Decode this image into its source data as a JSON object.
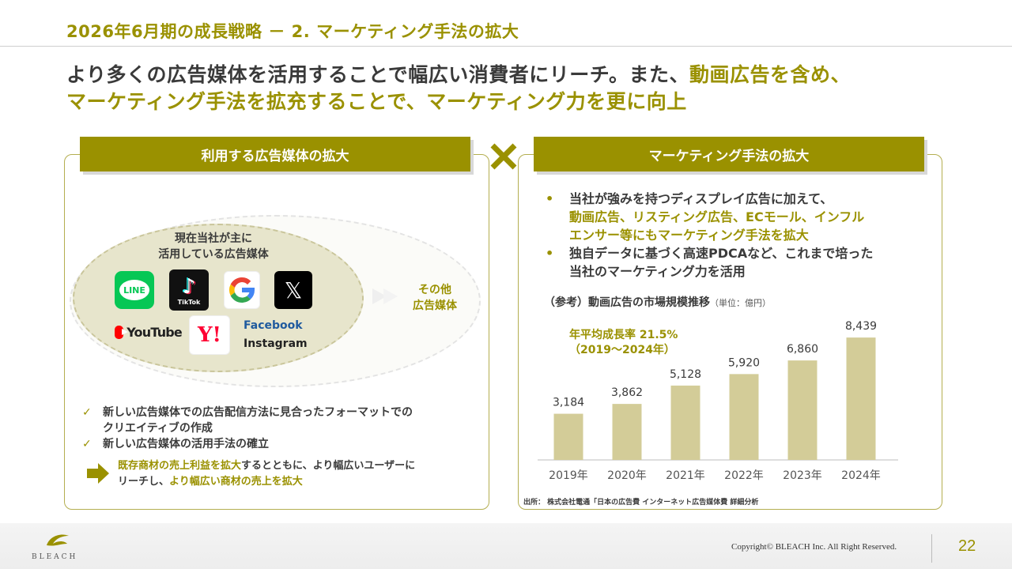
{
  "header": {
    "title": "2026年6月期の成長戦略 － 2. マーケティング手法の拡大"
  },
  "headline": {
    "line1_dark": "より多くの広告媒体を活用することで幅広い消費者にリーチ。また、",
    "line1_olive": "動画広告を含め、",
    "line2_olive": "マーケティング手法を拡充することで、マーケティング力を更に向上"
  },
  "left": {
    "banner": "利用する広告媒体の拡大",
    "inner_label_1": "現在当社が主に",
    "inner_label_2": "活用している広告媒体",
    "other_1": "その他",
    "other_2": "広告媒体",
    "logos": {
      "line": "LINE",
      "tiktok": "TikTok",
      "x": "𝕏",
      "youtube": "YouTube",
      "yahoo": "Y!",
      "facebook": "Facebook",
      "instagram": "Instagram"
    },
    "check_mark": "✓",
    "check1_a": "新しい広告媒体での広告配信方法に見合ったフォーマットでの",
    "check1_b": "クリエイティブの作成",
    "check2": "新しい広告媒体の活用手法の確立",
    "result_olive_1": "既存商材の売上利益を拡大",
    "result_dark_1": "するとともに、より幅広いユーザーに",
    "result_dark_2": "リーチし、",
    "result_olive_2": "より幅広い商材の売上を拡大"
  },
  "right": {
    "banner": "マーケティング手法の拡大",
    "bullet_dot": "•",
    "b1_l1": "当社が強みを持つディスプレイ広告に加えて、",
    "b1_l2": "動画広告、リスティング広告、ECモール、インフル",
    "b1_l3": "エンサー等にもマーケティング手法を拡大",
    "b2_l1": "独自データに基づく高速PDCAなど、これまで培った",
    "b2_l2": "当社のマーケティング力を活用",
    "chart_title": "（参考）動画広告の市場規模推移",
    "chart_unit": "（単位：億円）",
    "cagr_1": "年平均成長率 21.5%",
    "cagr_2": "（2019～2024年）",
    "source": "出所： 株式会社電通「日本の広告費 インターネット広告媒体費 詳細分析"
  },
  "chart_data": {
    "type": "bar",
    "categories": [
      "2019年",
      "2020年",
      "2021年",
      "2022年",
      "2023年",
      "2024年"
    ],
    "values": [
      3184,
      3862,
      5128,
      5920,
      6860,
      8439
    ],
    "value_labels": [
      "3,184",
      "3,862",
      "5,128",
      "5,920",
      "6,860",
      "8,439"
    ],
    "ylim": [
      0,
      9000
    ],
    "bar_color": "#d3cc98",
    "grid": false
  },
  "colors": {
    "accent": "#9a9100",
    "text": "#3a3a3a"
  },
  "footer": {
    "brand": "BLEACH",
    "copyright": "Copyright© BLEACH Inc. All Right Reserved.",
    "page": "22"
  }
}
